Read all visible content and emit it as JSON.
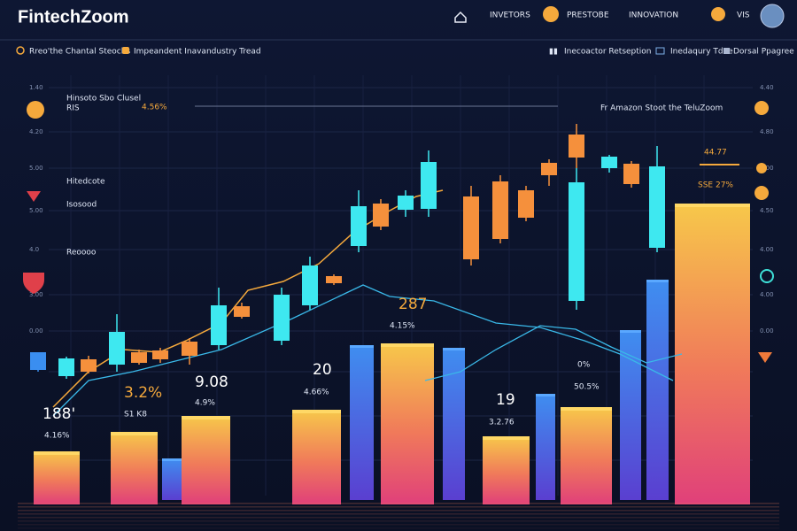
{
  "header": {
    "brand": "FintechZoom",
    "nav": [
      "INVETORS",
      "PRESTOBE",
      "INNOVATION",
      "VIS"
    ]
  },
  "subheader": {
    "left": [
      "Rreo'the Chantal Steocbs",
      "Impeandent Inavandustry Tread"
    ],
    "right": [
      "Inecoactor Retseption",
      "Inedaqury Tdee",
      "Dorsal Ppagree"
    ]
  },
  "axis": {
    "left": [
      "1.40",
      "4.20",
      "5.00",
      "5.00",
      "4.0",
      "3.00",
      "0.00"
    ],
    "right": [
      "4.40",
      "4.80",
      "5.00",
      "4.50",
      "4.00",
      "4.00",
      "0.00"
    ]
  },
  "panel": {
    "title": "Hinsoto Sbo Clusel",
    "code": "RIS",
    "change": "4.56%",
    "sidebar": [
      "Hitedcote",
      "Isosood",
      "Reoooo"
    ],
    "headline": "Fr Amazon Stoot the TeluZoom",
    "price": "44.77",
    "price_sub": "SSE 27%"
  },
  "labels": [
    {
      "value": "287",
      "sub": "4.15%"
    },
    {
      "value": "20",
      "sub": "4.66%"
    },
    {
      "value": "9.08",
      "sub": "4.9%"
    },
    {
      "value": "3.2%",
      "sub": "S1 K8"
    },
    {
      "value": "188'",
      "sub": "4.16%"
    },
    {
      "value": "19",
      "sub": "3.2.76"
    },
    {
      "value": "0%",
      "sub": "50.5%"
    }
  ]
}
